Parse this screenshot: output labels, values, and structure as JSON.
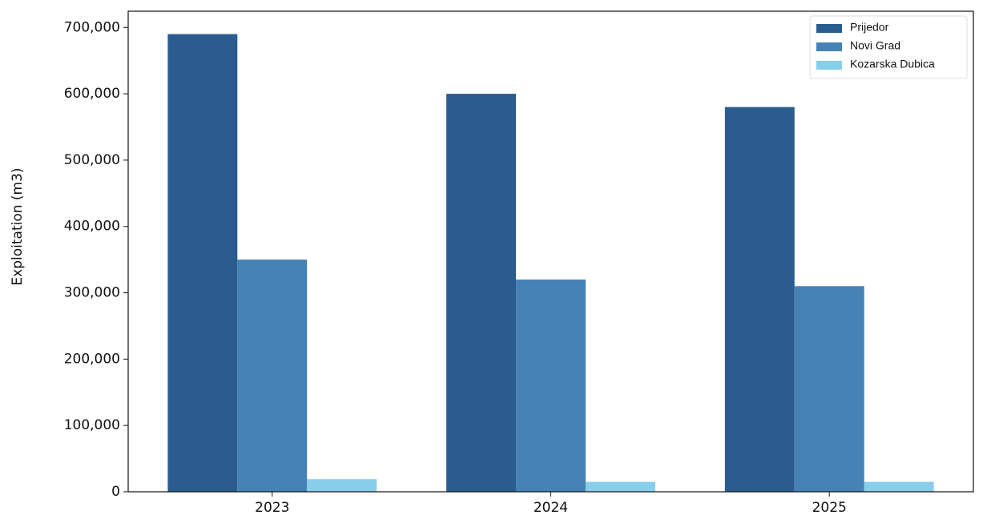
{
  "chart_data": {
    "type": "bar",
    "y_label": "Exploitation (m3)",
    "categories": [
      "2023",
      "2024",
      "2025"
    ],
    "series": [
      {
        "name": "Prijedor",
        "color": "#2a5c8e",
        "values": [
          690000,
          600000,
          580000
        ]
      },
      {
        "name": "Novi Grad",
        "color": "#4682b4",
        "values": [
          350000,
          320000,
          310000
        ]
      },
      {
        "name": "Kozarska Dubica",
        "color": "#87ceeb",
        "values": [
          19000,
          15000,
          15000
        ]
      }
    ],
    "ylim": [
      0,
      724500
    ],
    "yticks": [
      0,
      {
        "value": 100000,
        "label": "100,000"
      },
      {
        "value": 200000,
        "label": "200,000"
      },
      {
        "value": 300000,
        "label": "300,000"
      },
      {
        "value": 400000,
        "label": "400,000"
      },
      {
        "value": 500000,
        "label": "500,000"
      },
      {
        "value": 600000,
        "label": "600,000"
      },
      {
        "value": 700000,
        "label": "700,000"
      }
    ],
    "legend": "upper right"
  }
}
